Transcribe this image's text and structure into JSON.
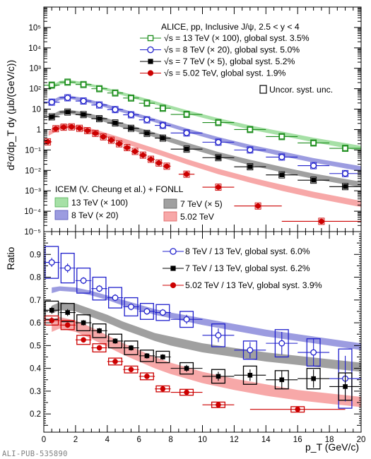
{
  "watermark": "ALI-PUB-535890",
  "chart_data": [
    {
      "name": "cross-section",
      "type": "scatter",
      "scale": "log",
      "xlim": [
        0,
        20
      ],
      "ylim": [
        1e-05,
        1000000.0
      ],
      "yticks": [
        {
          "v": 1e-05,
          "label": "10⁻⁵"
        },
        {
          "v": 0.0001,
          "label": "10⁻⁴"
        },
        {
          "v": 0.001,
          "label": "10⁻³"
        },
        {
          "v": 0.01,
          "label": "10⁻²"
        },
        {
          "v": 0.1,
          "label": "10⁻¹"
        },
        {
          "v": 1,
          "label": "1"
        },
        {
          "v": 10,
          "label": "10"
        },
        {
          "v": 100,
          "label": "10²"
        },
        {
          "v": 1000,
          "label": "10³"
        },
        {
          "v": 10000,
          "label": "10⁴"
        },
        {
          "v": 100000,
          "label": "10⁵"
        }
      ],
      "ylabel": "d²σ/dp_T dy (μb/(GeV/c))",
      "header": "ALICE, pp, Inclusive J/ψ, 2.5 < y < 4",
      "model_header": "ICEM (V. Cheung et al.) + FONLL",
      "uncor_label": "Uncor. syst. unc.",
      "series": [
        {
          "name": "√s = 13 TeV (× 100), global syst. 3.5%",
          "color": "#1a8c1a",
          "marker": "open-square",
          "x": [
            0.5,
            1.5,
            2.5,
            3.5,
            4.5,
            5.5,
            6.5,
            7.5,
            9,
            11,
            13,
            15,
            17,
            19
          ],
          "xerr": [
            0.5,
            0.5,
            0.5,
            0.5,
            0.5,
            0.5,
            0.5,
            0.5,
            1,
            1,
            1,
            1,
            1,
            1
          ],
          "y": [
            150,
            210,
            160,
            100,
            62,
            35,
            19.5,
            11,
            5.5,
            2.2,
            1.0,
            0.45,
            0.22,
            0.12
          ]
        },
        {
          "name": "√s = 8 TeV (× 20), global syst. 5.0%",
          "color": "#1f1fcc",
          "marker": "open-circle",
          "x": [
            0.5,
            1.5,
            2.5,
            3.5,
            4.5,
            5.5,
            6.5,
            7.5,
            9,
            11,
            13,
            15,
            17,
            19
          ],
          "xerr": [
            0.5,
            0.5,
            0.5,
            0.5,
            0.5,
            0.5,
            0.5,
            0.5,
            1,
            1,
            1,
            1,
            1,
            1
          ],
          "y": [
            22,
            36,
            25,
            16,
            9.5,
            5.3,
            3.0,
            1.6,
            0.68,
            0.24,
            0.1,
            0.045,
            0.017,
            0.007
          ]
        },
        {
          "name": "√s = 7 TeV (× 5), global syst. 5.2%",
          "color": "#000000",
          "marker": "filled-square",
          "x": [
            0.5,
            1.5,
            2.5,
            3.5,
            4.5,
            5.5,
            6.5,
            7.5,
            9,
            11,
            13,
            15,
            17,
            19
          ],
          "xerr": [
            0.5,
            0.5,
            0.5,
            0.5,
            0.5,
            0.5,
            0.5,
            0.5,
            1,
            1,
            1,
            1,
            1,
            1
          ],
          "y": [
            4.2,
            7.2,
            5.4,
            3.4,
            2.1,
            1.15,
            0.65,
            0.38,
            0.11,
            0.042,
            0.015,
            0.006,
            0.0033,
            0.0016
          ]
        },
        {
          "name": "√s = 5.02 TeV, global syst. 1.9%",
          "color": "#cc0000",
          "marker": "filled-circle",
          "x": [
            0.25,
            0.75,
            1.25,
            1.75,
            2.25,
            2.75,
            3.25,
            3.75,
            4.25,
            4.75,
            5.25,
            5.75,
            6.25,
            6.75,
            7.25,
            7.75,
            9,
            11,
            13.5,
            17.5
          ],
          "xerr": [
            0.25,
            0.25,
            0.25,
            0.25,
            0.25,
            0.25,
            0.25,
            0.25,
            0.25,
            0.25,
            0.25,
            0.25,
            0.25,
            0.25,
            0.25,
            0.25,
            0.5,
            1,
            1.5,
            2.5
          ],
          "y": [
            0.25,
            1.1,
            1.3,
            1.35,
            1.15,
            0.88,
            0.65,
            0.44,
            0.3,
            0.2,
            0.13,
            0.085,
            0.056,
            0.035,
            0.023,
            0.016,
            0.0065,
            0.0015,
            0.00018,
            3.2e-05
          ]
        }
      ],
      "bands": [
        {
          "name": "13 TeV (× 100)",
          "color": "#a6e0a6",
          "edge": "#4caf50",
          "x": [
            0.3,
            1,
            1.6,
            2.5,
            3.5,
            4.5,
            5.5,
            6.5,
            7.5,
            9,
            11,
            13,
            15,
            17,
            20
          ],
          "lo": [
            80,
            160,
            185,
            150,
            100,
            60,
            36,
            22,
            13,
            6,
            2.4,
            1.0,
            0.5,
            0.24,
            0.09
          ],
          "hi": [
            120,
            240,
            270,
            210,
            140,
            85,
            52,
            32,
            19,
            9,
            3.6,
            1.6,
            0.8,
            0.4,
            0.16
          ]
        },
        {
          "name": "8 TeV (× 20)",
          "color": "#9c9ce0",
          "edge": "#5050b8",
          "x": [
            0.3,
            1,
            1.6,
            2.5,
            3.5,
            4.5,
            5.5,
            6.5,
            7.5,
            9,
            11,
            13,
            15,
            17,
            20
          ],
          "lo": [
            14,
            28,
            32,
            24,
            15,
            8.8,
            5.2,
            3.0,
            1.7,
            0.75,
            0.27,
            0.11,
            0.05,
            0.024,
            0.009
          ],
          "hi": [
            22,
            42,
            47,
            35,
            22,
            13,
            7.6,
            4.5,
            2.6,
            1.15,
            0.43,
            0.18,
            0.085,
            0.04,
            0.016
          ]
        },
        {
          "name": "7 TeV (× 5)",
          "color": "#a0a0a0",
          "edge": "#606060",
          "x": [
            0.3,
            1,
            1.6,
            2.5,
            3.5,
            4.5,
            5.5,
            6.5,
            7.5,
            9,
            11,
            13,
            15,
            17,
            20
          ],
          "lo": [
            2.6,
            5.2,
            6.0,
            4.5,
            2.8,
            1.6,
            0.95,
            0.55,
            0.31,
            0.13,
            0.045,
            0.018,
            0.008,
            0.0038,
            0.0015
          ],
          "hi": [
            4.4,
            8.5,
            9.5,
            7.2,
            4.6,
            2.7,
            1.6,
            0.93,
            0.53,
            0.23,
            0.08,
            0.033,
            0.015,
            0.007,
            0.0028
          ]
        },
        {
          "name": "5.02 TeV",
          "color": "#f7a8a8",
          "edge": "#e06060",
          "x": [
            0.3,
            1,
            1.6,
            2.5,
            3.5,
            4.5,
            5.5,
            6.5,
            7.5,
            9,
            11,
            13,
            15,
            17,
            20
          ],
          "lo": [
            0.5,
            1.0,
            1.15,
            0.85,
            0.52,
            0.29,
            0.16,
            0.09,
            0.05,
            0.02,
            0.0065,
            0.0025,
            0.001,
            0.00045,
            0.00016
          ],
          "hi": [
            0.85,
            1.7,
            1.9,
            1.4,
            0.86,
            0.5,
            0.28,
            0.16,
            0.09,
            0.036,
            0.012,
            0.0046,
            0.002,
            0.0009,
            0.00032
          ]
        }
      ]
    },
    {
      "name": "ratio",
      "type": "scatter",
      "xlim": [
        0,
        20
      ],
      "ylim": [
        0.12,
        1.0
      ],
      "yticks": [
        0.2,
        0.3,
        0.4,
        0.5,
        0.6,
        0.7,
        0.8,
        0.9
      ],
      "xticks": [
        0,
        2,
        4,
        6,
        8,
        10,
        12,
        14,
        16,
        18,
        20
      ],
      "xlabel": "p_T (GeV/c)",
      "ylabel": "Ratio",
      "series": [
        {
          "name": "8 TeV / 13 TeV, global syst. 6.0%",
          "color": "#1f1fcc",
          "marker": "open-circle",
          "x": [
            0.5,
            1.5,
            2.5,
            3.5,
            4.5,
            5.5,
            6.5,
            7.5,
            9,
            11,
            13,
            15,
            17,
            19
          ],
          "xerr": [
            0.5,
            0.5,
            0.5,
            0.5,
            0.5,
            0.5,
            0.5,
            0.5,
            1,
            1,
            1,
            1,
            1,
            1
          ],
          "y": [
            0.865,
            0.84,
            0.785,
            0.75,
            0.71,
            0.67,
            0.65,
            0.645,
            0.615,
            0.545,
            0.48,
            0.51,
            0.47,
            0.355
          ],
          "yerr": [
            0.02,
            0.02,
            0.015,
            0.015,
            0.015,
            0.015,
            0.015,
            0.015,
            0.02,
            0.03,
            0.035,
            0.05,
            0.06,
            0.1
          ],
          "syst": [
            0.07,
            0.065,
            0.055,
            0.05,
            0.045,
            0.04,
            0.035,
            0.035,
            0.035,
            0.05,
            0.04,
            0.06,
            0.06,
            0.13
          ]
        },
        {
          "name": "7 TeV / 13 TeV, global syst. 6.2%",
          "color": "#000000",
          "marker": "filled-square",
          "x": [
            0.5,
            1.5,
            2.5,
            3.5,
            4.5,
            5.5,
            6.5,
            7.5,
            9,
            11,
            13,
            15,
            17,
            19
          ],
          "xerr": [
            0.5,
            0.5,
            0.5,
            0.5,
            0.5,
            0.5,
            0.5,
            0.5,
            1,
            1,
            1,
            1,
            1,
            1
          ],
          "y": [
            0.655,
            0.645,
            0.6,
            0.565,
            0.52,
            0.49,
            0.455,
            0.45,
            0.4,
            0.365,
            0.37,
            0.35,
            0.355,
            0.32
          ],
          "yerr": [
            0.015,
            0.015,
            0.012,
            0.012,
            0.012,
            0.012,
            0.012,
            0.012,
            0.015,
            0.02,
            0.025,
            0.04,
            0.04,
            0.06
          ],
          "syst": [
            0.04,
            0.04,
            0.035,
            0.03,
            0.03,
            0.03,
            0.025,
            0.025,
            0.025,
            0.03,
            0.04,
            0.04,
            0.045,
            0.06
          ]
        },
        {
          "name": "5.02 TeV / 13 TeV, global syst. 3.9%",
          "color": "#cc0000",
          "marker": "filled-circle",
          "x": [
            0.5,
            1.5,
            2.5,
            3.5,
            4.5,
            5.5,
            6.5,
            7.5,
            9,
            11,
            16
          ],
          "xerr": [
            0.5,
            0.5,
            0.5,
            0.5,
            0.5,
            0.5,
            0.5,
            0.5,
            1,
            1,
            3
          ],
          "y": [
            0.61,
            0.59,
            0.525,
            0.49,
            0.43,
            0.395,
            0.365,
            0.31,
            0.295,
            0.24,
            0.22
          ],
          "yerr": [
            0.015,
            0.012,
            0.012,
            0.012,
            0.012,
            0.012,
            0.012,
            0.012,
            0.012,
            0.012,
            0.012
          ],
          "syst": [
            0.02,
            0.02,
            0.02,
            0.018,
            0.015,
            0.015,
            0.015,
            0.013,
            0.013,
            0.012,
            0.012
          ]
        }
      ],
      "bands": [
        {
          "name": "8 TeV / 13 TeV",
          "color": "#9c9ce0",
          "x": [
            0.5,
            1,
            2,
            3,
            4,
            5,
            6,
            7,
            8,
            10,
            12,
            14,
            16,
            18,
            20
          ],
          "lo": [
            0.73,
            0.74,
            0.735,
            0.72,
            0.7,
            0.675,
            0.655,
            0.635,
            0.62,
            0.59,
            0.565,
            0.54,
            0.52,
            0.5,
            0.48
          ],
          "hi": [
            0.755,
            0.76,
            0.755,
            0.74,
            0.72,
            0.7,
            0.68,
            0.66,
            0.645,
            0.62,
            0.595,
            0.57,
            0.55,
            0.53,
            0.51
          ]
        },
        {
          "name": "7 TeV / 13 TeV",
          "color": "#a0a0a0",
          "x": [
            0.5,
            1,
            2,
            3,
            4,
            5,
            6,
            7,
            8,
            10,
            12,
            14,
            16,
            18,
            20
          ],
          "lo": [
            0.64,
            0.655,
            0.65,
            0.625,
            0.6,
            0.57,
            0.545,
            0.52,
            0.5,
            0.47,
            0.45,
            0.43,
            0.415,
            0.4,
            0.385
          ],
          "hi": [
            0.675,
            0.69,
            0.685,
            0.66,
            0.635,
            0.605,
            0.58,
            0.555,
            0.54,
            0.51,
            0.49,
            0.47,
            0.455,
            0.44,
            0.425
          ]
        },
        {
          "name": "5.02 TeV / 13 TeV",
          "color": "#f7a8a8",
          "x": [
            0.5,
            1,
            2,
            3,
            4,
            5,
            6,
            7,
            8,
            10,
            12,
            14,
            16,
            18,
            20
          ],
          "lo": [
            0.56,
            0.575,
            0.56,
            0.53,
            0.495,
            0.46,
            0.43,
            0.4,
            0.375,
            0.335,
            0.305,
            0.28,
            0.26,
            0.245,
            0.23
          ],
          "hi": [
            0.615,
            0.625,
            0.61,
            0.58,
            0.545,
            0.51,
            0.48,
            0.45,
            0.425,
            0.385,
            0.355,
            0.33,
            0.305,
            0.29,
            0.275
          ]
        }
      ]
    }
  ]
}
